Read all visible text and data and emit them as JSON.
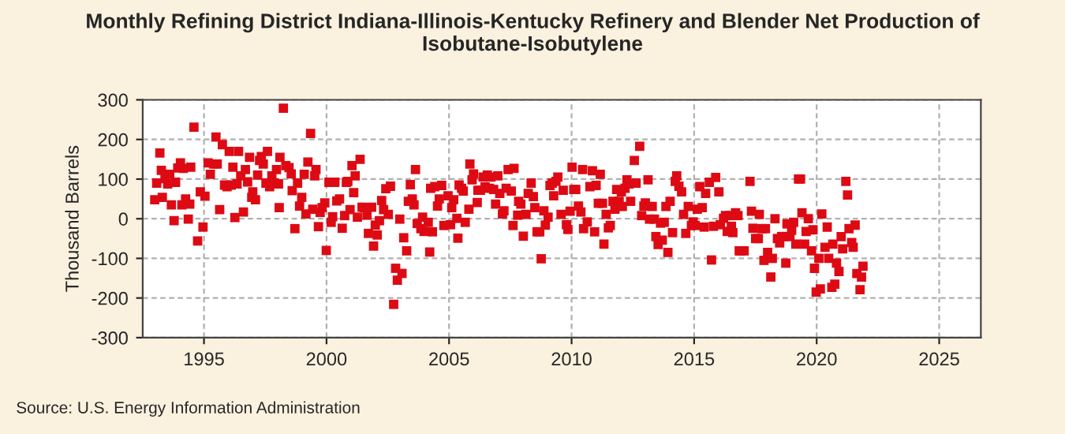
{
  "chart_data": {
    "type": "scatter",
    "title": "Monthly Refining District Indiana-Illinois-Kentucky Refinery and Blender Net Production of Isobutane-Isobutylene",
    "ylabel": "Thousand Barrels",
    "annotations": [
      "Source: U.S. Energy Information Administration"
    ],
    "xlim": [
      1992.5,
      2026.7
    ],
    "xticks": [
      1995,
      2000,
      2005,
      2010,
      2015,
      2020,
      2025
    ],
    "ylim": [
      -300,
      300
    ],
    "yticks": [
      -300,
      -200,
      -100,
      0,
      100,
      200,
      300
    ],
    "grid": true,
    "marker": "square",
    "legend": false,
    "series": [
      {
        "color": "#dd0a14",
        "x": [
          1992.99,
          1993.07,
          1993.2,
          1993.26,
          1993.3,
          1993.41,
          1993.52,
          1993.6,
          1993.67,
          1993.78,
          1993.84,
          1993.93,
          1994.04,
          1994.1,
          1994.16,
          1994.25,
          1994.36,
          1994.42,
          1994.46,
          1994.59,
          1994.74,
          1994.85,
          1994.96,
          1995.04,
          1995.17,
          1995.26,
          1995.39,
          1995.49,
          1995.54,
          1995.64,
          1995.75,
          1995.84,
          1995.94,
          1996.03,
          1996.11,
          1996.18,
          1996.26,
          1996.35,
          1996.41,
          1996.5,
          1996.61,
          1996.69,
          1996.78,
          1996.86,
          1996.95,
          1996.99,
          1997.1,
          1997.19,
          1997.27,
          1997.34,
          1997.42,
          1997.53,
          1997.59,
          1997.68,
          1997.77,
          1997.87,
          1997.96,
          1998.04,
          1998.07,
          1998.1,
          1998.24,
          1998.34,
          1998.47,
          1998.56,
          1998.6,
          1998.71,
          1998.82,
          1998.9,
          1998.99,
          1999.09,
          1999.16,
          1999.24,
          1999.35,
          1999.44,
          1999.52,
          1999.57,
          1999.67,
          1999.74,
          1999.82,
          1999.93,
          1999.99,
          2000.1,
          2000.19,
          2000.25,
          2000.34,
          2000.42,
          2000.53,
          2000.64,
          2000.74,
          2000.81,
          2000.87,
          2000.96,
          2001.04,
          2001.11,
          2001.17,
          2001.26,
          2001.37,
          2001.45,
          2001.54,
          2001.65,
          2001.71,
          2001.84,
          2001.92,
          2001.99,
          2002.07,
          2002.16,
          2002.25,
          2002.33,
          2002.42,
          2002.52,
          2002.61,
          2002.74,
          2002.82,
          2002.89,
          2002.99,
          2003.08,
          2003.15,
          2003.27,
          2003.34,
          2003.42,
          2003.5,
          2003.57,
          2003.63,
          2003.7,
          2003.85,
          2003.92,
          2003.98,
          2004.15,
          2004.21,
          2004.25,
          2004.32,
          2004.42,
          2004.53,
          2004.6,
          2004.7,
          2004.79,
          2004.96,
          2005.06,
          2005.11,
          2005.19,
          2005.32,
          2005.36,
          2005.41,
          2005.51,
          2005.58,
          2005.66,
          2005.81,
          2005.85,
          2005.94,
          2006.0,
          2006.15,
          2006.18,
          2006.28,
          2006.39,
          2006.47,
          2006.56,
          2006.65,
          2006.71,
          2006.82,
          2006.9,
          2006.99,
          2007.07,
          2007.18,
          2007.24,
          2007.33,
          2007.41,
          2007.54,
          2007.61,
          2007.65,
          2007.8,
          2007.84,
          2007.93,
          2008.03,
          2008.14,
          2008.23,
          2008.35,
          2008.44,
          2008.5,
          2008.59,
          2008.7,
          2008.76,
          2008.87,
          2008.93,
          2009.04,
          2009.12,
          2009.21,
          2009.27,
          2009.36,
          2009.44,
          2009.57,
          2009.66,
          2009.79,
          2009.85,
          2009.94,
          2010.02,
          2010.09,
          2010.17,
          2010.28,
          2010.38,
          2010.45,
          2010.49,
          2010.64,
          2010.75,
          2010.85,
          2010.94,
          2011.0,
          2011.09,
          2011.17,
          2011.26,
          2011.32,
          2011.41,
          2011.5,
          2011.58,
          2011.69,
          2011.77,
          2011.84,
          2011.94,
          2012.03,
          2012.07,
          2012.18,
          2012.26,
          2012.35,
          2012.41,
          2012.56,
          2012.63,
          2012.78,
          2012.86,
          2012.95,
          2013.01,
          2013.12,
          2013.18,
          2013.29,
          2013.38,
          2013.44,
          2013.53,
          2013.63,
          2013.7,
          2013.78,
          2013.85,
          2013.93,
          2014.02,
          2014.12,
          2014.23,
          2014.29,
          2014.38,
          2014.49,
          2014.57,
          2014.66,
          2014.76,
          2014.89,
          2014.96,
          2015.04,
          2015.13,
          2015.23,
          2015.33,
          2015.41,
          2015.47,
          2015.62,
          2015.71,
          2015.79,
          2015.88,
          2016.01,
          2016.07,
          2016.2,
          2016.28,
          2016.35,
          2016.46,
          2016.52,
          2016.58,
          2016.69,
          2016.79,
          2016.84,
          2016.91,
          2017.04,
          2017.28,
          2017.34,
          2017.4,
          2017.51,
          2017.62,
          2017.66,
          2017.77,
          2017.85,
          2017.91,
          2018.0,
          2018.13,
          2018.19,
          2018.3,
          2018.4,
          2018.49,
          2018.57,
          2018.68,
          2018.74,
          2018.79,
          2018.91,
          2018.98,
          2019.06,
          2019.15,
          2019.26,
          2019.34,
          2019.4,
          2019.51,
          2019.57,
          2019.66,
          2019.79,
          2019.85,
          2019.91,
          2019.98,
          2020.09,
          2020.15,
          2020.21,
          2020.34,
          2020.43,
          2020.49,
          2020.62,
          2020.66,
          2020.74,
          2020.81,
          2020.91,
          2021.0,
          2021.06,
          2021.19,
          2021.26,
          2021.32,
          2021.43,
          2021.49,
          2021.57,
          2021.64,
          2021.77,
          2021.83,
          2021.89
        ],
        "values": [
          48,
          90,
          166,
          122,
          54,
          101,
          88,
          112,
          35,
          -5,
          92,
          128,
          141,
          35,
          127,
          50,
          -1,
          37,
          130,
          231,
          -56,
          68,
          -21,
          57,
          141,
          112,
          138,
          206,
          138,
          23,
          187,
          85,
          81,
          170,
          85,
          130,
          3,
          88,
          170,
          108,
          17,
          124,
          93,
          155,
          54,
          68,
          48,
          110,
          147,
          157,
          138,
          90,
          170,
          81,
          108,
          90,
          124,
          88,
          28,
          155,
          279,
          134,
          129,
          113,
          71,
          -25,
          90,
          32,
          54,
          112,
          12,
          143,
          215,
          24,
          108,
          124,
          -20,
          16,
          28,
          40,
          -80,
          92,
          -9,
          5,
          92,
          45,
          50,
          -24,
          8,
          92,
          94,
          23,
          134,
          66,
          108,
          4,
          150,
          29,
          28,
          9,
          -37,
          29,
          -69,
          -16,
          -41,
          -5,
          46,
          23,
          76,
          11,
          82,
          -216,
          -125,
          -155,
          -1,
          -138,
          -48,
          -81,
          44,
          86,
          50,
          35,
          124,
          -12,
          -25,
          4,
          -32,
          -9,
          -84,
          77,
          -33,
          81,
          32,
          50,
          84,
          -17,
          58,
          -15,
          28,
          48,
          1,
          -49,
          85,
          77,
          70,
          -9,
          24,
          138,
          98,
          113,
          41,
          72,
          72,
          105,
          80,
          110,
          77,
          105,
          74,
          37,
          108,
          64,
          12,
          20,
          77,
          124,
          70,
          -17,
          127,
          9,
          44,
          37,
          -44,
          11,
          64,
          90,
          56,
          28,
          -33,
          -33,
          -101,
          20,
          -16,
          4,
          84,
          90,
          58,
          94,
          105,
          11,
          72,
          -15,
          -27,
          19,
          130,
          74,
          74,
          32,
          17,
          124,
          -25,
          -8,
          81,
          121,
          -33,
          84,
          39,
          112,
          39,
          -64,
          11,
          -23,
          -17,
          44,
          24,
          74,
          44,
          68,
          31,
          77,
          98,
          88,
          44,
          147,
          90,
          183,
          8,
          32,
          40,
          98,
          -1,
          31,
          -1,
          -45,
          -65,
          -11,
          -54,
          -9,
          31,
          -85,
          44,
          -35,
          94,
          108,
          82,
          68,
          11,
          -37,
          31,
          -17,
          -8,
          -17,
          24,
          81,
          28,
          -21,
          64,
          92,
          -104,
          -19,
          104,
          68,
          -15,
          1,
          8,
          -32,
          8,
          -19,
          -35,
          15,
          8,
          -81,
          -81,
          -81,
          94,
          19,
          -24,
          -50,
          -50,
          11,
          -25,
          -105,
          -25,
          -85,
          -147,
          -100,
          0,
          -50,
          -61,
          -45,
          -45,
          -112,
          -13,
          -45,
          -29,
          -9,
          -64,
          100,
          100,
          15,
          -64,
          -32,
          0,
          -81,
          -28,
          -125,
          -185,
          -100,
          -177,
          12,
          -72,
          -21,
          -100,
          -173,
          -64,
          -165,
          -112,
          -133,
          -45,
          -76,
          94,
          60,
          -25,
          -60,
          -72,
          -16,
          -138,
          -179,
          -147,
          -120
        ]
      }
    ]
  }
}
